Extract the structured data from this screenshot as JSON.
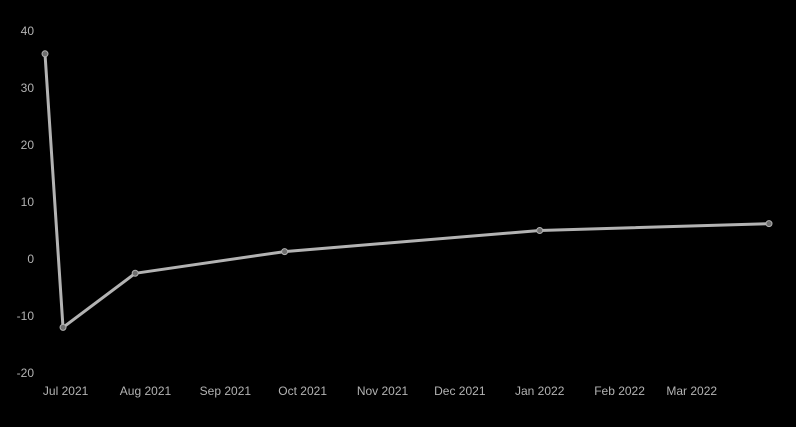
{
  "chart_data": {
    "type": "line",
    "title": "",
    "xlabel": "",
    "ylabel": "",
    "grid": false,
    "colors": {
      "background": "#000000",
      "line": "#b3b3b3",
      "marker_fill": "#6e6e6e",
      "tick_text": "#b3b3b3"
    },
    "ylim": [
      -20,
      40
    ],
    "yticks": [
      40,
      30,
      20,
      10,
      0,
      -10,
      -20
    ],
    "ytick_labels": [
      "40",
      "30",
      "20",
      "10",
      "0",
      "-10",
      "-20"
    ],
    "xlim": [
      "2021-06-23",
      "2022-03-31"
    ],
    "xticks": [
      {
        "date": "2021-07-01",
        "label": "Jul 2021"
      },
      {
        "date": "2021-08-01",
        "label": "Aug 2021"
      },
      {
        "date": "2021-09-01",
        "label": "Sep 2021"
      },
      {
        "date": "2021-10-01",
        "label": "Oct 2021"
      },
      {
        "date": "2021-11-01",
        "label": "Nov 2021"
      },
      {
        "date": "2021-12-01",
        "label": "Dec 2021"
      },
      {
        "date": "2022-01-01",
        "label": "Jan 2022"
      },
      {
        "date": "2022-02-01",
        "label": "Feb 2022"
      },
      {
        "date": "2022-03-01",
        "label": "Mar 2022"
      }
    ],
    "series": [
      {
        "points": [
          {
            "x": "2021-06-23",
            "y": 36
          },
          {
            "x": "2021-06-30",
            "y": -12
          },
          {
            "x": "2021-07-28",
            "y": -2.5
          },
          {
            "x": "2021-09-24",
            "y": 1.3
          },
          {
            "x": "2022-01-01",
            "y": 5
          },
          {
            "x": "2022-03-31",
            "y": 6.2
          }
        ]
      }
    ]
  }
}
